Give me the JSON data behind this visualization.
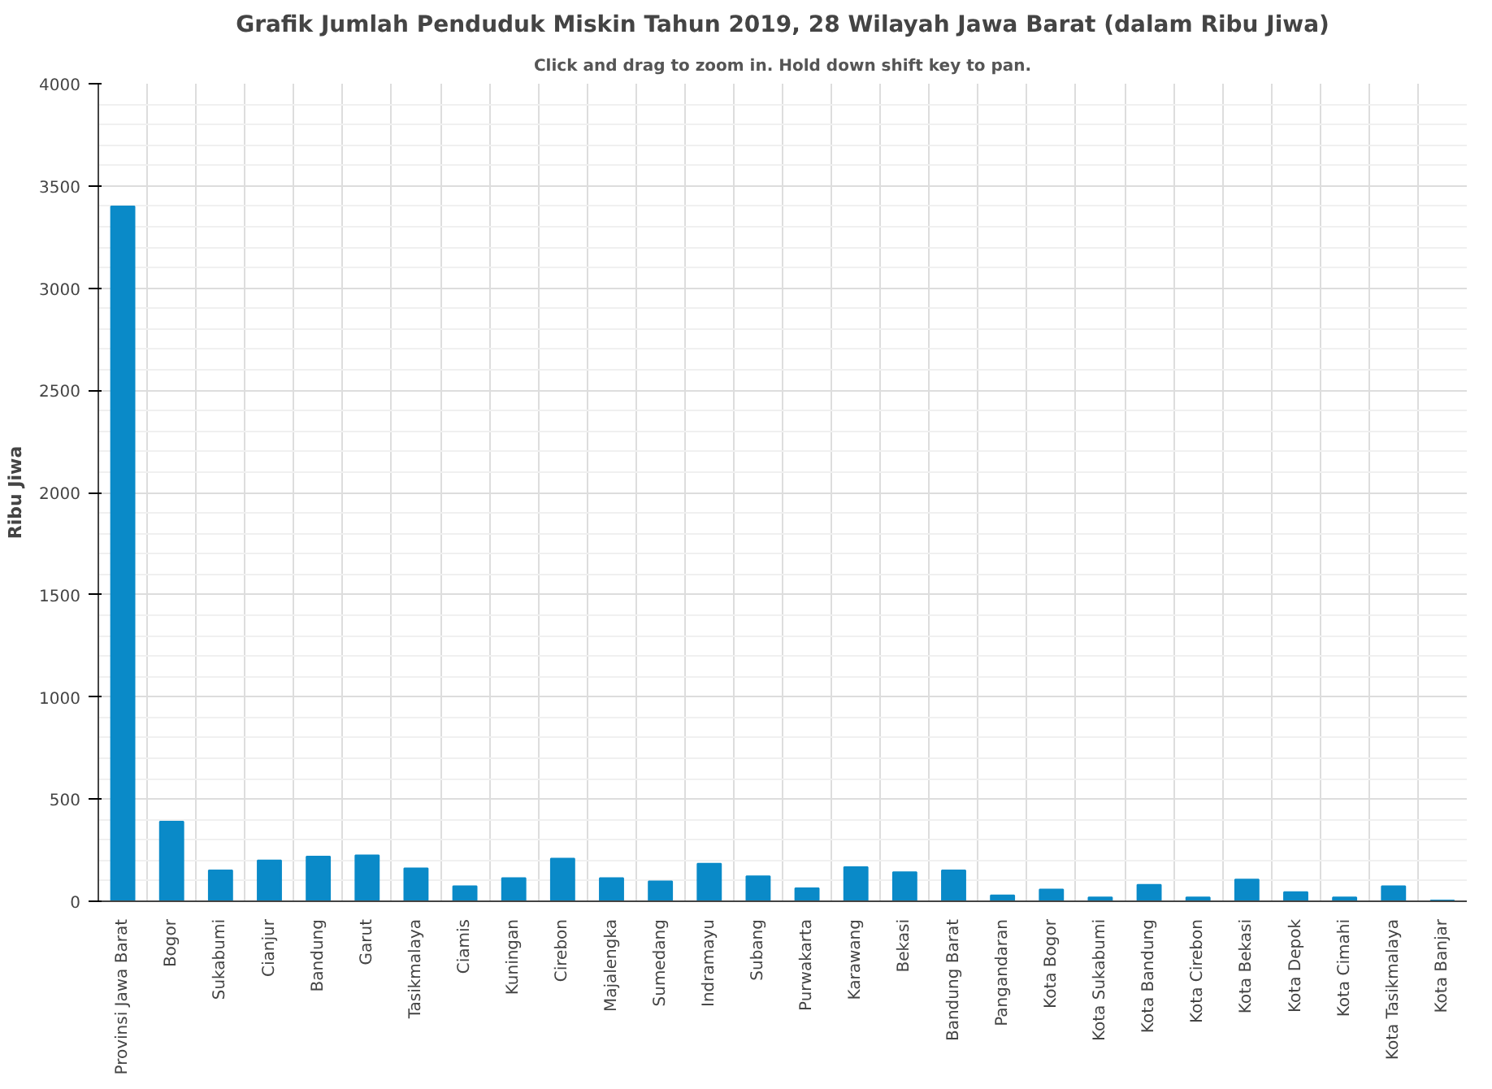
{
  "chart_data": {
    "type": "bar",
    "title": "Grafik Jumlah Penduduk Miskin Tahun 2019, 28 Wilayah Jawa Barat (dalam Ribu Jiwa)",
    "subtitle": "Click and drag to zoom in. Hold down shift key to pan.",
    "ylabel": "Ribu Jiwa",
    "categories": [
      "Provinsi Jawa Barat",
      "Bogor",
      "Sukabumi",
      "Cianjur",
      "Bandung",
      "Garut",
      "Tasikmalaya",
      "Ciamis",
      "Kuningan",
      "Cirebon",
      "Majalengka",
      "Sumedang",
      "Indramayu",
      "Subang",
      "Purwakarta",
      "Karawang",
      "Bekasi",
      "Bandung Barat",
      "Pangandaran",
      "Kota Bogor",
      "Kota Sukabumi",
      "Kota Bandung",
      "Kota Cirebon",
      "Kota Bekasi",
      "Kota Depok",
      "Kota Cimahi",
      "Kota Tasikmalaya",
      "Kota Banjar"
    ],
    "values": [
      3400,
      390,
      151,
      200,
      219,
      225,
      161,
      74,
      113,
      209,
      113,
      97,
      184,
      122,
      64,
      167,
      142,
      151,
      29,
      58,
      19,
      81,
      19,
      106,
      45,
      19,
      74,
      4
    ],
    "color": "#0a8ac8",
    "ylim": [
      0,
      4000
    ],
    "yticks": [
      0,
      500,
      1000,
      1500,
      2000,
      2500,
      3000,
      3500,
      4000
    ],
    "grid": true
  }
}
